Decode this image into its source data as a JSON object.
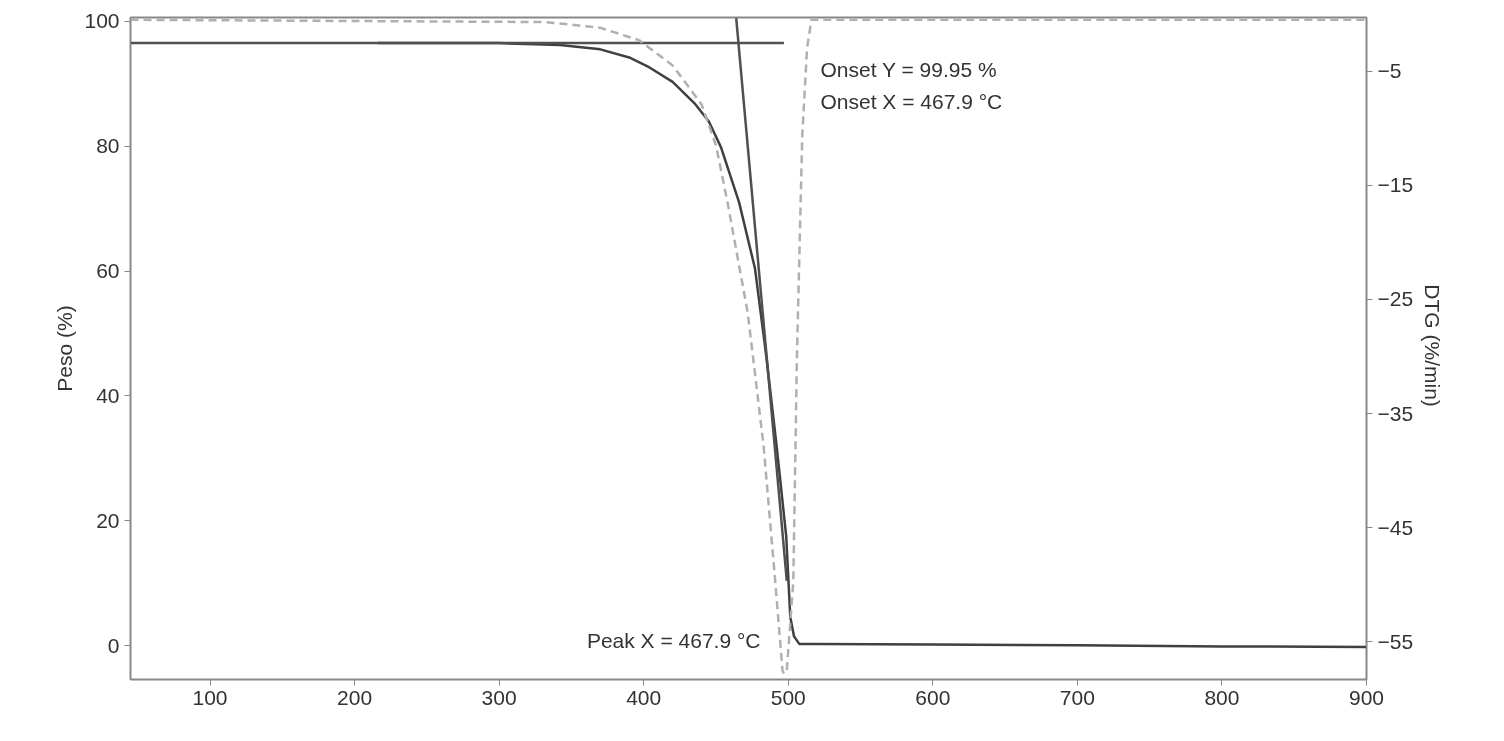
{
  "chart_data": {
    "type": "line",
    "xlabel": null,
    "ylabel": "Peso (%)",
    "y2label": "DTG  (%/min)",
    "xlim": [
      45,
      900
    ],
    "xticks": [
      100,
      200,
      300,
      400,
      500,
      600,
      700,
      800,
      900
    ],
    "ylim": [
      -5.4,
      100.6
    ],
    "yticks": [
      0,
      20,
      40,
      60,
      80,
      100
    ],
    "y2lim": [
      -58.3,
      -0.3
    ],
    "y2ticks": [
      -5,
      -15,
      -25,
      -35,
      -45,
      -55
    ],
    "grid": false,
    "marker": "none",
    "series": [
      {
        "color": "#404040",
        "line_style": "solid",
        "x": [
          216,
          300,
          342,
          370,
          390,
          404,
          420,
          435,
          445,
          453.5,
          466,
          477,
          485,
          492,
          498.6,
          501.4,
          504,
          507.6,
          520,
          600,
          700,
          800,
          900
        ],
        "values": [
          96.5,
          96.5,
          96.2,
          95.5,
          94.2,
          92.6,
          90.3,
          86.9,
          84,
          79.8,
          71,
          60.4,
          46,
          31.9,
          17.5,
          4.6,
          1.5,
          0.3,
          0.3,
          0.2,
          0.1,
          -0.1,
          -0.2
        ]
      },
      {
        "color": "#505050",
        "line_style": "solid",
        "x": [
          45,
          497
        ],
        "values": [
          96.5,
          96.5
        ]
      },
      {
        "color": "#505050",
        "line_style": "solid",
        "x": [
          464,
          499
        ],
        "values": [
          100.5,
          10.4
        ]
      },
      {
        "color": "#b0b0b0",
        "line_style": "dashed",
        "axis": "y2",
        "x": [
          45,
          332,
          370,
          397,
          420,
          440,
          450,
          458,
          472,
          483,
          491,
          496,
          497,
          499,
          503.5,
          506,
          509.7,
          513,
          516,
          600,
          900
        ],
        "values": [
          -0.5,
          -0.7,
          -1.2,
          -2.3,
          -4.5,
          -7.9,
          -11.5,
          -16.5,
          -26.2,
          -37.9,
          -49.7,
          -57.5,
          -57.8,
          -57.5,
          -49.7,
          -30,
          -10.6,
          -3,
          -0.5,
          -0.5,
          -0.5
        ]
      }
    ],
    "annotations": [
      "Onset Y = 99.95 %",
      "Onset X = 467.9 °C",
      "Peak X = 467.9 °C"
    ]
  }
}
